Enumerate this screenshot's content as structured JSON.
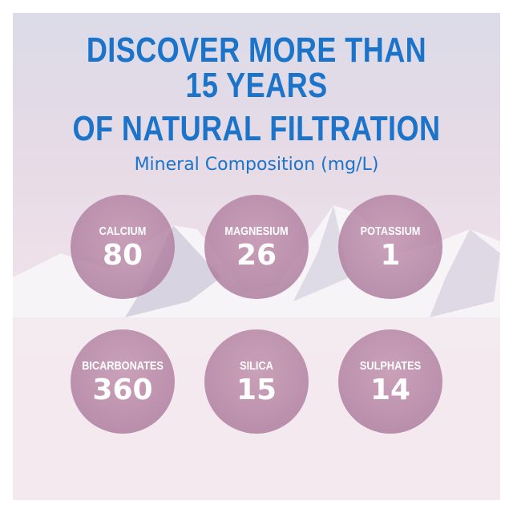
{
  "headline": {
    "line1": "DISCOVER MORE THAN",
    "line2": "15 YEARS",
    "line3": "OF NATURAL FILTRATION"
  },
  "subtitle": "Mineral Composition (mg/L)",
  "minerals": [
    {
      "label": "CALCIUM",
      "value": "80"
    },
    {
      "label": "MAGNESIUM",
      "value": "26"
    },
    {
      "label": "POTASSIUM",
      "value": "1"
    },
    {
      "label": "BICARBONATES",
      "value": "360"
    },
    {
      "label": "SILICA",
      "value": "15"
    },
    {
      "label": "SULPHATES",
      "value": "14"
    }
  ],
  "colors": {
    "headline": "#1b74c9",
    "circle": "#b07a9c",
    "background": "#e8dde8"
  }
}
